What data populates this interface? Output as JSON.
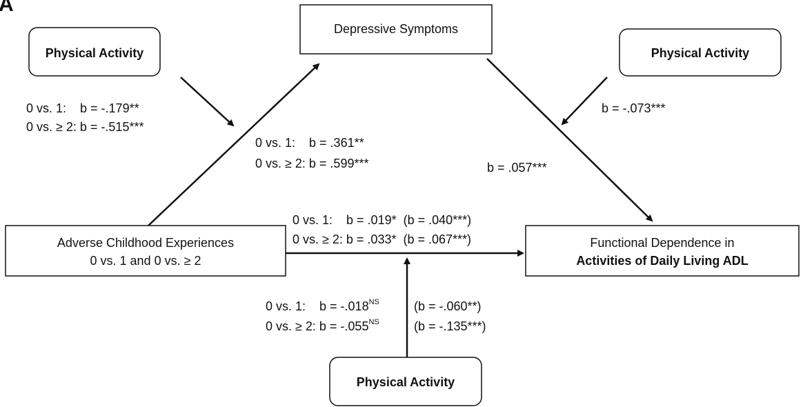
{
  "panel_label": "A",
  "nodes": {
    "depressive_symptoms": "Depressive Symptoms",
    "physical_activity_left": "Physical Activity",
    "physical_activity_right": "Physical Activity",
    "physical_activity_bottom": "Physical Activity",
    "adverse_childhood": [
      "Adverse Childhood Experiences",
      "0 vs. 1 and 0 vs. ≥ 2"
    ],
    "functional_dependence": [
      "Functional Dependence in",
      "Activities of Daily Living ADL"
    ]
  },
  "edges": {
    "moderation_left": [
      "0 vs. 1:    b = -.179**",
      "0 vs. ≥ 2: b = -.515***"
    ],
    "path_a": [
      "0 vs. 1:    b = .361**",
      "0 vs. ≥ 2: b = .599***"
    ],
    "path_b": "b = .057***",
    "moderation_right": "b = -.073***",
    "path_c": [
      "0 vs. 1:    b = .019*  (b = .040***)",
      "0 vs. ≥ 2: b = .033*  (b = .067***)"
    ],
    "moderation_bottom": [
      {
        "direct": "0 vs. 1:    b = -.018",
        "significance": "NS",
        "total": "(b = -.060**)"
      },
      {
        "direct": "0 vs. ≥ 2: b = -.055",
        "significance": "NS",
        "total": "(b = -.135***)"
      }
    ]
  }
}
